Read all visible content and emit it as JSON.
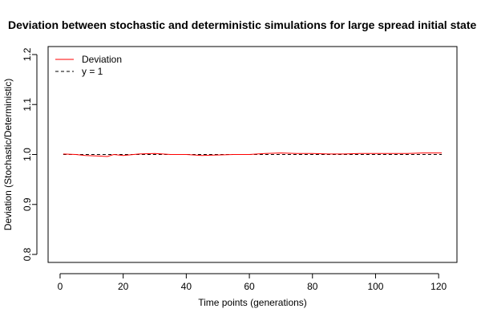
{
  "chart_data": {
    "type": "line",
    "title": "Deviation between stochastic and deterministic simulations for large spread initial state",
    "xlabel": "Time points (generations)",
    "ylabel": "Deviation (Stochastic/Deterministic)",
    "xlim": [
      1,
      121
    ],
    "ylim": [
      0.8,
      1.2
    ],
    "xticks": [
      0,
      20,
      40,
      60,
      80,
      100,
      120
    ],
    "yticks": [
      0.8,
      0.9,
      1.0,
      1.1,
      1.2
    ],
    "xtick_labels": [
      "0",
      "20",
      "40",
      "60",
      "80",
      "100",
      "120"
    ],
    "ytick_labels": [
      "0.8",
      "0.9",
      "1.0",
      "1.1",
      "1.2"
    ],
    "legend_position": "top-left",
    "series": [
      {
        "name": "Deviation",
        "color": "#ff0000",
        "style": "solid",
        "x": [
          1,
          5,
          8,
          12,
          15,
          17,
          20,
          25,
          30,
          35,
          40,
          45,
          50,
          55,
          60,
          65,
          70,
          75,
          80,
          85,
          90,
          95,
          100,
          105,
          110,
          115,
          121
        ],
        "y": [
          1.001,
          1.0,
          0.998,
          0.997,
          0.996,
          1.0,
          0.998,
          1.001,
          1.002,
          1.0,
          1.0,
          0.998,
          0.999,
          1.0,
          1.0,
          1.002,
          1.003,
          1.002,
          1.002,
          1.001,
          1.001,
          1.002,
          1.002,
          1.002,
          1.002,
          1.003,
          1.003
        ]
      },
      {
        "name": "y = 1",
        "color": "#000000",
        "style": "dashed",
        "x": [
          1,
          121
        ],
        "y": [
          1.0,
          1.0
        ]
      }
    ]
  }
}
